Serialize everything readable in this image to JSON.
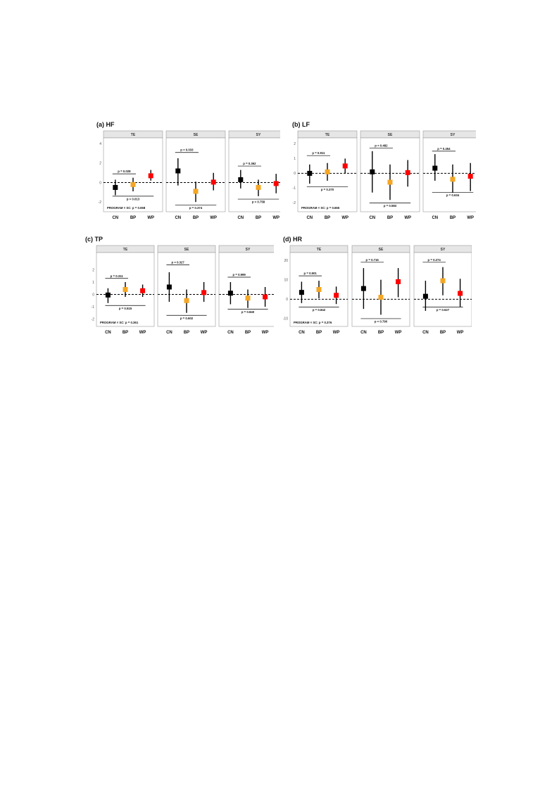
{
  "chart_data": [
    {
      "type": "scatter",
      "title": "(a) HF",
      "categories": [
        "CN",
        "BP",
        "WP"
      ],
      "colors": [
        "#000000",
        "#f5a623",
        "#ff0000"
      ],
      "ylim": [
        -3,
        4.6
      ],
      "yticks": [
        "-2",
        "0",
        "2",
        "4"
      ],
      "ytick_values": [
        -2,
        0,
        2,
        4
      ],
      "bottom_note": "PROGRAM × SC: p = 0.068",
      "facets": [
        {
          "label": "TE",
          "points": [
            {
              "category": "CN",
              "value": -0.5,
              "lo": -1.3,
              "hi": 0.3
            },
            {
              "category": "BP",
              "value": -0.2,
              "lo": -0.9,
              "hi": 0.5
            },
            {
              "category": "WP",
              "value": 0.7,
              "lo": 0.2,
              "hi": 1.3
            }
          ],
          "annotations": [
            {
              "text": "p = 0.028",
              "from": "CN",
              "to": "BP",
              "y": 0.9,
              "pos": "above"
            },
            {
              "text": "p = 0.013",
              "from": "CN",
              "to": "WP",
              "y": -1.4,
              "pos": "below"
            }
          ]
        },
        {
          "label": "SE",
          "points": [
            {
              "category": "CN",
              "value": 1.2,
              "lo": -0.3,
              "hi": 2.5
            },
            {
              "category": "BP",
              "value": -0.9,
              "lo": -2.0,
              "hi": 0.1
            },
            {
              "category": "WP",
              "value": 0.05,
              "lo": -0.8,
              "hi": 1.0
            }
          ],
          "annotations": [
            {
              "text": "p = 0.033",
              "from": "CN",
              "to": "BP",
              "y": 3.1,
              "pos": "above"
            },
            {
              "text": "p = 0.374",
              "from": "CN",
              "to": "WP",
              "y": -2.3,
              "pos": "below"
            }
          ]
        },
        {
          "label": "SY",
          "points": [
            {
              "category": "CN",
              "value": 0.3,
              "lo": -0.6,
              "hi": 1.3
            },
            {
              "category": "BP",
              "value": -0.5,
              "lo": -1.4,
              "hi": 0.3
            },
            {
              "category": "WP",
              "value": -0.1,
              "lo": -1.1,
              "hi": 0.9
            }
          ],
          "annotations": [
            {
              "text": "p = 0.362",
              "from": "CN",
              "to": "BP",
              "y": 1.7,
              "pos": "above"
            },
            {
              "text": "p = 0.758",
              "from": "CN",
              "to": "WP",
              "y": -1.7,
              "pos": "below"
            }
          ]
        }
      ]
    },
    {
      "type": "scatter",
      "title": "(b) LF",
      "categories": [
        "CN",
        "BP",
        "WP"
      ],
      "colors": [
        "#000000",
        "#f5a623",
        "#ff0000"
      ],
      "ylim": [
        -2.6,
        2.4
      ],
      "yticks": [
        "-2",
        "-1",
        "0",
        "1",
        "2"
      ],
      "ytick_values": [
        -2,
        -1,
        0,
        1,
        2
      ],
      "bottom_note": "PROGRAM × SC: p = 0.665",
      "facets": [
        {
          "label": "TE",
          "points": [
            {
              "category": "CN",
              "value": 0.0,
              "lo": -0.7,
              "hi": 0.6
            },
            {
              "category": "BP",
              "value": 0.1,
              "lo": -0.5,
              "hi": 0.7
            },
            {
              "category": "WP",
              "value": 0.5,
              "lo": 0.0,
              "hi": 1.0
            }
          ],
          "annotations": [
            {
              "text": "p = 0.911",
              "from": "CN",
              "to": "BP",
              "y": 1.2,
              "pos": "above"
            },
            {
              "text": "p = 0.370",
              "from": "CN",
              "to": "WP",
              "y": -0.9,
              "pos": "below"
            }
          ]
        },
        {
          "label": "SE",
          "points": [
            {
              "category": "CN",
              "value": 0.1,
              "lo": -1.3,
              "hi": 1.5
            },
            {
              "category": "BP",
              "value": -0.6,
              "lo": -1.8,
              "hi": 0.6
            },
            {
              "category": "WP",
              "value": 0.05,
              "lo": -0.9,
              "hi": 0.9
            }
          ],
          "annotations": [
            {
              "text": "p = 0.482",
              "from": "CN",
              "to": "BP",
              "y": 1.7,
              "pos": "above"
            },
            {
              "text": "p = 0.583",
              "from": "CN",
              "to": "WP",
              "y": -2.0,
              "pos": "below"
            }
          ]
        },
        {
          "label": "SY",
          "points": [
            {
              "category": "CN",
              "value": 0.35,
              "lo": -0.5,
              "hi": 1.3
            },
            {
              "category": "BP",
              "value": -0.4,
              "lo": -1.3,
              "hi": 0.6
            },
            {
              "category": "WP",
              "value": -0.2,
              "lo": -1.2,
              "hi": 0.7
            }
          ],
          "annotations": [
            {
              "text": "p = 0.454",
              "from": "CN",
              "to": "BP",
              "y": 1.5,
              "pos": "above"
            },
            {
              "text": "p = 0.634",
              "from": "CN",
              "to": "WP",
              "y": -1.3,
              "pos": "below"
            }
          ]
        }
      ]
    },
    {
      "type": "scatter",
      "title": "(c) TP",
      "categories": [
        "CN",
        "BP",
        "WP"
      ],
      "colors": [
        "#000000",
        "#f5a623",
        "#ff0000"
      ],
      "ylim": [
        -2.6,
        3.4
      ],
      "yticks": [
        "-2",
        "-1",
        "0",
        "1",
        "2"
      ],
      "ytick_values": [
        -2,
        -1,
        0,
        1,
        2
      ],
      "bottom_note": "PROGRAM × SC: p = 0.361",
      "facets": [
        {
          "label": "TE",
          "points": [
            {
              "category": "CN",
              "value": -0.05,
              "lo": -0.7,
              "hi": 0.5
            },
            {
              "category": "BP",
              "value": 0.4,
              "lo": -0.2,
              "hi": 1.0
            },
            {
              "category": "WP",
              "value": 0.3,
              "lo": -0.2,
              "hi": 0.8
            }
          ],
          "annotations": [
            {
              "text": "p = 0.311",
              "from": "CN",
              "to": "BP",
              "y": 1.3,
              "pos": "above"
            },
            {
              "text": "p = 0.515",
              "from": "CN",
              "to": "WP",
              "y": -0.9,
              "pos": "below"
            }
          ]
        },
        {
          "label": "SE",
          "points": [
            {
              "category": "CN",
              "value": 0.6,
              "lo": -0.6,
              "hi": 1.8
            },
            {
              "category": "BP",
              "value": -0.5,
              "lo": -1.5,
              "hi": 0.4
            },
            {
              "category": "WP",
              "value": 0.15,
              "lo": -0.6,
              "hi": 1.0
            }
          ],
          "annotations": [
            {
              "text": "p = 0.327",
              "from": "CN",
              "to": "BP",
              "y": 2.4,
              "pos": "above"
            },
            {
              "text": "p = 0.602",
              "from": "CN",
              "to": "WP",
              "y": -1.7,
              "pos": "below"
            }
          ]
        },
        {
          "label": "SY",
          "points": [
            {
              "category": "CN",
              "value": 0.1,
              "lo": -0.8,
              "hi": 1.0
            },
            {
              "category": "BP",
              "value": -0.3,
              "lo": -1.1,
              "hi": 0.4
            },
            {
              "category": "WP",
              "value": -0.2,
              "lo": -1.0,
              "hi": 0.6
            }
          ],
          "annotations": [
            {
              "text": "p = 0.999",
              "from": "CN",
              "to": "BP",
              "y": 1.4,
              "pos": "above"
            },
            {
              "text": "p = 0.840",
              "from": "CN",
              "to": "WP",
              "y": -1.2,
              "pos": "below"
            }
          ]
        }
      ]
    },
    {
      "type": "scatter",
      "title": "(d) HR",
      "categories": [
        "CN",
        "BP",
        "WP"
      ],
      "colors": [
        "#000000",
        "#f5a623",
        "#ff0000"
      ],
      "ylim": [
        -14,
        24
      ],
      "yticks": [
        "-10",
        "0",
        "10",
        "20"
      ],
      "ytick_values": [
        -10,
        0,
        10,
        20
      ],
      "bottom_note": "PROGRAM × SC: p = 0.376",
      "facets": [
        {
          "label": "TE",
          "points": [
            {
              "category": "CN",
              "value": 3.5,
              "lo": -2.0,
              "hi": 9.0
            },
            {
              "category": "BP",
              "value": 5.0,
              "lo": 0.5,
              "hi": 9.5
            },
            {
              "category": "WP",
              "value": 2.0,
              "lo": -2.5,
              "hi": 6.5
            }
          ],
          "annotations": [
            {
              "text": "p = 0.501",
              "from": "CN",
              "to": "BP",
              "y": 12,
              "pos": "above"
            },
            {
              "text": "p = 0.842",
              "from": "CN",
              "to": "WP",
              "y": -4,
              "pos": "below"
            }
          ]
        },
        {
          "label": "SE",
          "points": [
            {
              "category": "CN",
              "value": 5.5,
              "lo": -5.0,
              "hi": 16.0
            },
            {
              "category": "BP",
              "value": 1.0,
              "lo": -8.0,
              "hi": 10.0
            },
            {
              "category": "WP",
              "value": 9.0,
              "lo": 1.0,
              "hi": 16.0
            }
          ],
          "annotations": [
            {
              "text": "p = 0.716",
              "from": "CN",
              "to": "BP",
              "y": 19,
              "pos": "above"
            },
            {
              "text": "p = 0.790",
              "from": "CN",
              "to": "WP",
              "y": -10,
              "pos": "below"
            }
          ]
        },
        {
          "label": "SY",
          "points": [
            {
              "category": "CN",
              "value": 1.5,
              "lo": -6.0,
              "hi": 9.5
            },
            {
              "category": "BP",
              "value": 9.5,
              "lo": 2.0,
              "hi": 16.5
            },
            {
              "category": "WP",
              "value": 3.0,
              "lo": -4.0,
              "hi": 10.5
            }
          ],
          "annotations": [
            {
              "text": "p = 0.274",
              "from": "CN",
              "to": "BP",
              "y": 19,
              "pos": "above"
            },
            {
              "text": "p = 0.627",
              "from": "CN",
              "to": "WP",
              "y": -4,
              "pos": "below"
            }
          ]
        }
      ]
    }
  ]
}
